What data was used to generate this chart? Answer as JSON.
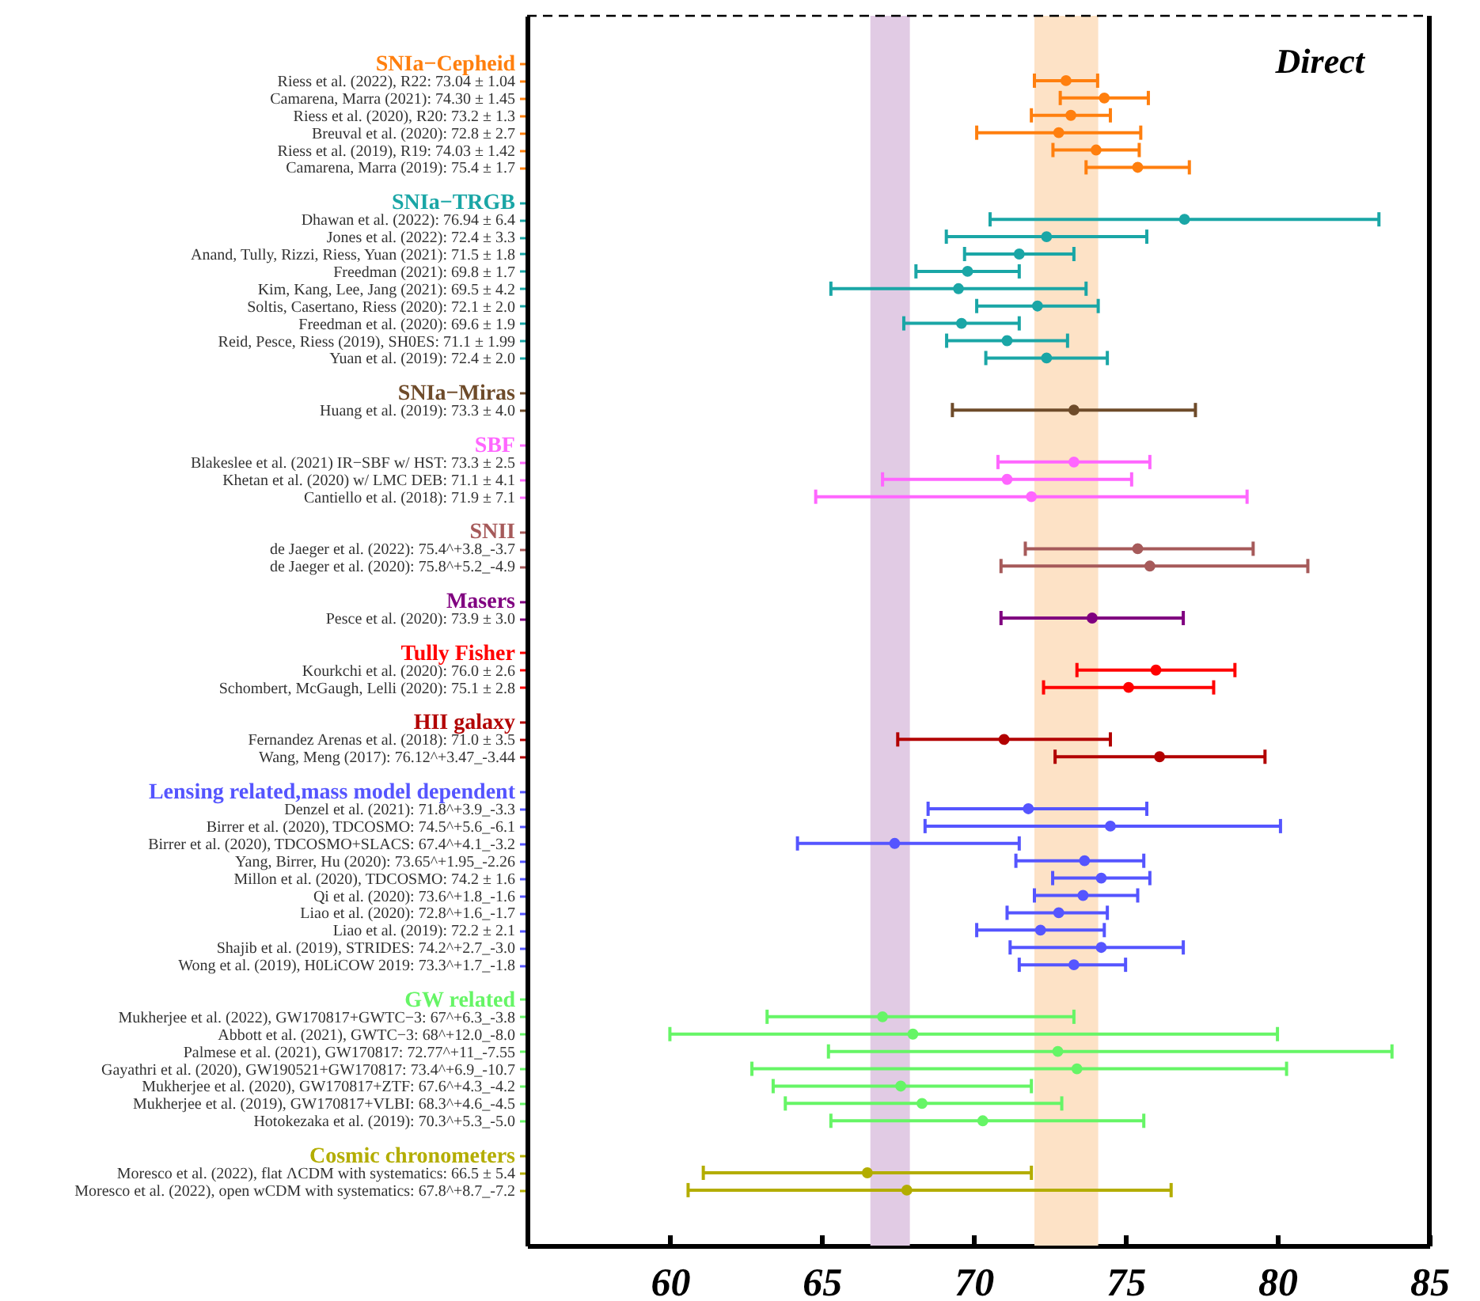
{
  "chart_data": {
    "type": "scatter",
    "orientation": "horizontal",
    "marker": "circle",
    "categories": [
      null,
      "Riess et al. (2022), R22: 73.04 ± 1.04",
      "Camarena, Marra (2021): 74.30 ± 1.45",
      "Riess et al. (2020), R20: 73.2 ± 1.3",
      "Breuval et al. (2020): 72.8 ± 2.7",
      "Riess et al. (2019), R19: 74.03 ± 1.42",
      "Camarena, Marra (2019): 75.4 ± 1.7",
      null,
      null,
      "Dhawan et al. (2022): 76.94 ± 6.4",
      "Jones et al. (2022): 72.4 ± 3.3",
      "Anand, Tully, Rizzi, Riess, Yuan (2021): 71.5 ± 1.8",
      "Freedman (2021): 69.8 ± 1.7",
      "Kim, Kang, Lee, Jang (2021): 69.5 ± 4.2",
      "Soltis, Casertano, Riess (2020): 72.1 ± 2.0",
      "Freedman et al. (2020): 69.6 ± 1.9",
      "Reid, Pesce, Riess (2019), SH0ES: 71.1 ± 1.99",
      "Yuan et al. (2019): 72.4 ± 2.0",
      null,
      null,
      "Huang et al. (2019): 73.3 ± 4.0",
      null,
      null,
      "Blakeslee et al. (2021) IR−SBF w/ HST: 73.3 ± 2.5",
      "Khetan et al. (2020) w/ LMC DEB: 71.1 ± 4.1",
      "Cantiello et al. (2018): 71.9 ± 7.1",
      null,
      null,
      "de Jaeger et al. (2022): 75.4^+3.8_-3.7",
      "de Jaeger et al. (2020): 75.8^+5.2_-4.9",
      null,
      null,
      "Pesce et al. (2020): 73.9 ± 3.0",
      null,
      null,
      "Kourkchi et al. (2020): 76.0 ± 2.6",
      "Schombert, McGaugh, Lelli (2020): 75.1 ± 2.8",
      null,
      null,
      "Fernandez Arenas et al. (2018): 71.0 ± 3.5",
      "Wang, Meng (2017): 76.12^+3.47_-3.44",
      null,
      null,
      "Denzel et al. (2021): 71.8^+3.9_-3.3",
      "Birrer et al. (2020), TDCOSMO: 74.5^+5.6_-6.1",
      "Birrer et al. (2020), TDCOSMO+SLACS: 67.4^+4.1_-3.2",
      "Yang, Birrer, Hu (2020): 73.65^+1.95_-2.26",
      "Millon et al. (2020), TDCOSMO: 74.2 ± 1.6",
      "Qi et al. (2020): 73.6^+1.8_-1.6",
      "Liao et al. (2020): 72.8^+1.6_-1.7",
      "Liao et al. (2019): 72.2 ± 2.1",
      "Shajib et al. (2019), STRIDES: 74.2^+2.7_-3.0",
      "Wong et al. (2019), H0LiCOW 2019: 73.3^+1.7_-1.8",
      null,
      null,
      "Mukherjee et al. (2022), GW170817+GWTC−3: 67^+6.3_-3.8",
      "Abbott et al. (2021), GWTC−3: 68^+12.0_-8.0",
      "Palmese et al. (2021), GW170817: 72.77^+11_-7.55",
      "Gayathri et al. (2020), GW190521+GW170817: 73.4^+6.9_-10.7",
      "Mukherjee et al. (2020), GW170817+ZTF: 67.6^+4.3_-4.2",
      "Mukherjee et al. (2019), GW170817+VLBI: 68.3^+4.6_-4.5",
      "Hotokezaka et al. (2019): 70.3^+5.3_-5.0",
      null,
      null,
      "Moresco et al. (2022), flat ΛCDM with systematics: 66.5 ± 5.4",
      "Moresco et al. (2022), open wCDM with systematics: 67.8^+8.7_-7.2"
    ],
    "series": [
      {
        "name": "SNIa−Cepheid",
        "color": "#ff7f0e",
        "values": [
          null,
          73.04,
          74.3,
          73.2,
          72.8,
          74.03,
          75.4,
          null,
          null,
          null,
          null,
          null,
          null,
          null,
          null,
          null,
          null,
          null,
          null,
          null,
          null,
          null,
          null,
          null,
          null,
          null,
          null,
          null,
          null,
          null,
          null,
          null,
          null,
          null,
          null,
          null,
          null,
          null,
          null,
          null,
          null,
          null,
          null,
          null,
          null,
          null,
          null,
          null,
          null,
          null,
          null,
          null,
          null,
          null,
          null,
          null,
          null,
          null,
          null,
          null,
          null,
          null,
          null,
          null,
          null,
          null
        ],
        "errors": [
          null,
          1.04,
          1.45,
          1.3,
          2.7,
          1.42,
          1.7,
          null,
          null,
          null,
          null,
          null,
          null,
          null,
          null,
          null,
          null,
          null,
          null,
          null,
          null,
          null,
          null,
          null,
          null,
          null,
          null,
          null,
          null,
          null,
          null,
          null,
          null,
          null,
          null,
          null,
          null,
          null,
          null,
          null,
          null,
          null,
          null,
          null,
          null,
          null,
          null,
          null,
          null,
          null,
          null,
          null,
          null,
          null,
          null,
          null,
          null,
          null,
          null,
          null,
          null,
          null,
          null,
          null,
          null,
          null
        ]
      },
      {
        "name": "SNIa−TRGB",
        "color": "#1aa6a6",
        "values": [
          null,
          null,
          null,
          null,
          null,
          null,
          null,
          null,
          null,
          76.94,
          72.4,
          71.5,
          69.8,
          69.5,
          72.1,
          69.6,
          71.1,
          72.4,
          null,
          null,
          null,
          null,
          null,
          null,
          null,
          null,
          null,
          null,
          null,
          null,
          null,
          null,
          null,
          null,
          null,
          null,
          null,
          null,
          null,
          null,
          null,
          null,
          null,
          null,
          null,
          null,
          null,
          null,
          null,
          null,
          null,
          null,
          null,
          null,
          null,
          null,
          null,
          null,
          null,
          null,
          null,
          null,
          null,
          null,
          null,
          null
        ],
        "errors": [
          null,
          null,
          null,
          null,
          null,
          null,
          null,
          null,
          null,
          6.4,
          3.3,
          1.8,
          1.7,
          4.2,
          2.0,
          1.9,
          1.99,
          2.0,
          null,
          null,
          null,
          null,
          null,
          null,
          null,
          null,
          null,
          null,
          null,
          null,
          null,
          null,
          null,
          null,
          null,
          null,
          null,
          null,
          null,
          null,
          null,
          null,
          null,
          null,
          null,
          null,
          null,
          null,
          null,
          null,
          null,
          null,
          null,
          null,
          null,
          null,
          null,
          null,
          null,
          null,
          null,
          null,
          null,
          null,
          null,
          null
        ]
      },
      {
        "name": "SNIa−Miras",
        "color": "#6e4b2a",
        "values": [
          null,
          null,
          null,
          null,
          null,
          null,
          null,
          null,
          null,
          null,
          null,
          null,
          null,
          null,
          null,
          null,
          null,
          null,
          null,
          null,
          73.3,
          null,
          null,
          null,
          null,
          null,
          null,
          null,
          null,
          null,
          null,
          null,
          null,
          null,
          null,
          null,
          null,
          null,
          null,
          null,
          null,
          null,
          null,
          null,
          null,
          null,
          null,
          null,
          null,
          null,
          null,
          null,
          null,
          null,
          null,
          null,
          null,
          null,
          null,
          null,
          null,
          null,
          null,
          null,
          null,
          null
        ],
        "errors": [
          null,
          null,
          null,
          null,
          null,
          null,
          null,
          null,
          null,
          null,
          null,
          null,
          null,
          null,
          null,
          null,
          null,
          null,
          null,
          null,
          4.0,
          null,
          null,
          null,
          null,
          null,
          null,
          null,
          null,
          null,
          null,
          null,
          null,
          null,
          null,
          null,
          null,
          null,
          null,
          null,
          null,
          null,
          null,
          null,
          null,
          null,
          null,
          null,
          null,
          null,
          null,
          null,
          null,
          null,
          null,
          null,
          null,
          null,
          null,
          null,
          null,
          null,
          null,
          null,
          null,
          null
        ]
      },
      {
        "name": "SBF",
        "color": "#ff66ff",
        "values": [
          null,
          null,
          null,
          null,
          null,
          null,
          null,
          null,
          null,
          null,
          null,
          null,
          null,
          null,
          null,
          null,
          null,
          null,
          null,
          null,
          null,
          null,
          null,
          73.3,
          71.1,
          71.9,
          null,
          null,
          null,
          null,
          null,
          null,
          null,
          null,
          null,
          null,
          null,
          null,
          null,
          null,
          null,
          null,
          null,
          null,
          null,
          null,
          null,
          null,
          null,
          null,
          null,
          null,
          null,
          null,
          null,
          null,
          null,
          null,
          null,
          null,
          null,
          null,
          null,
          null,
          null,
          null
        ],
        "errors": [
          null,
          null,
          null,
          null,
          null,
          null,
          null,
          null,
          null,
          null,
          null,
          null,
          null,
          null,
          null,
          null,
          null,
          null,
          null,
          null,
          null,
          null,
          null,
          2.5,
          4.1,
          7.1,
          null,
          null,
          null,
          null,
          null,
          null,
          null,
          null,
          null,
          null,
          null,
          null,
          null,
          null,
          null,
          null,
          null,
          null,
          null,
          null,
          null,
          null,
          null,
          null,
          null,
          null,
          null,
          null,
          null,
          null,
          null,
          null,
          null,
          null,
          null,
          null,
          null,
          null,
          null,
          null
        ]
      },
      {
        "name": "SNII",
        "color": "#a65a5a",
        "values": [
          null,
          null,
          null,
          null,
          null,
          null,
          null,
          null,
          null,
          null,
          null,
          null,
          null,
          null,
          null,
          null,
          null,
          null,
          null,
          null,
          null,
          null,
          null,
          null,
          null,
          null,
          null,
          null,
          75.4,
          75.8,
          null,
          null,
          null,
          null,
          null,
          null,
          null,
          null,
          null,
          null,
          null,
          null,
          null,
          null,
          null,
          null,
          null,
          null,
          null,
          null,
          null,
          null,
          null,
          null,
          null,
          null,
          null,
          null,
          null,
          null,
          null,
          null,
          null,
          null,
          null,
          null
        ],
        "errors": [
          null,
          null,
          null,
          null,
          null,
          null,
          null,
          null,
          null,
          null,
          null,
          null,
          null,
          null,
          null,
          null,
          null,
          null,
          null,
          null,
          null,
          null,
          null,
          null,
          null,
          null,
          null,
          null,
          [
            71.7,
            79.2
          ],
          [
            70.9,
            81.0
          ],
          null,
          null,
          null,
          null,
          null,
          null,
          null,
          null,
          null,
          null,
          null,
          null,
          null,
          null,
          null,
          null,
          null,
          null,
          null,
          null,
          null,
          null,
          null,
          null,
          null,
          null,
          null,
          null,
          null,
          null,
          null,
          null,
          null,
          null,
          null,
          null
        ]
      },
      {
        "name": "Masers",
        "color": "#800080",
        "values": [
          null,
          null,
          null,
          null,
          null,
          null,
          null,
          null,
          null,
          null,
          null,
          null,
          null,
          null,
          null,
          null,
          null,
          null,
          null,
          null,
          null,
          null,
          null,
          null,
          null,
          null,
          null,
          null,
          null,
          null,
          null,
          null,
          73.9,
          null,
          null,
          null,
          null,
          null,
          null,
          null,
          null,
          null,
          null,
          null,
          null,
          null,
          null,
          null,
          null,
          null,
          null,
          null,
          null,
          null,
          null,
          null,
          null,
          null,
          null,
          null,
          null,
          null,
          null,
          null,
          null,
          null
        ],
        "errors": [
          null,
          null,
          null,
          null,
          null,
          null,
          null,
          null,
          null,
          null,
          null,
          null,
          null,
          null,
          null,
          null,
          null,
          null,
          null,
          null,
          null,
          null,
          null,
          null,
          null,
          null,
          null,
          null,
          null,
          null,
          null,
          null,
          3.0,
          null,
          null,
          null,
          null,
          null,
          null,
          null,
          null,
          null,
          null,
          null,
          null,
          null,
          null,
          null,
          null,
          null,
          null,
          null,
          null,
          null,
          null,
          null,
          null,
          null,
          null,
          null,
          null,
          null,
          null,
          null,
          null,
          null
        ]
      },
      {
        "name": "Tully Fisher",
        "color": "#ff0000",
        "values": [
          null,
          null,
          null,
          null,
          null,
          null,
          null,
          null,
          null,
          null,
          null,
          null,
          null,
          null,
          null,
          null,
          null,
          null,
          null,
          null,
          null,
          null,
          null,
          null,
          null,
          null,
          null,
          null,
          null,
          null,
          null,
          null,
          null,
          null,
          null,
          76.0,
          75.1,
          null,
          null,
          null,
          null,
          null,
          null,
          null,
          null,
          null,
          null,
          null,
          null,
          null,
          null,
          null,
          null,
          null,
          null,
          null,
          null,
          null,
          null,
          null,
          null,
          null,
          null,
          null,
          null,
          null
        ],
        "errors": [
          null,
          null,
          null,
          null,
          null,
          null,
          null,
          null,
          null,
          null,
          null,
          null,
          null,
          null,
          null,
          null,
          null,
          null,
          null,
          null,
          null,
          null,
          null,
          null,
          null,
          null,
          null,
          null,
          null,
          null,
          null,
          null,
          null,
          null,
          null,
          2.6,
          2.8,
          null,
          null,
          null,
          null,
          null,
          null,
          null,
          null,
          null,
          null,
          null,
          null,
          null,
          null,
          null,
          null,
          null,
          null,
          null,
          null,
          null,
          null,
          null,
          null,
          null,
          null,
          null,
          null,
          null
        ]
      },
      {
        "name": "HII galaxy",
        "color": "#b20000",
        "values": [
          null,
          null,
          null,
          null,
          null,
          null,
          null,
          null,
          null,
          null,
          null,
          null,
          null,
          null,
          null,
          null,
          null,
          null,
          null,
          null,
          null,
          null,
          null,
          null,
          null,
          null,
          null,
          null,
          null,
          null,
          null,
          null,
          null,
          null,
          null,
          null,
          null,
          null,
          null,
          71.0,
          76.12,
          null,
          null,
          null,
          null,
          null,
          null,
          null,
          null,
          null,
          null,
          null,
          null,
          null,
          null,
          null,
          null,
          null,
          null,
          null,
          null,
          null,
          null,
          null,
          null,
          null
        ],
        "errors": [
          null,
          null,
          null,
          null,
          null,
          null,
          null,
          null,
          null,
          null,
          null,
          null,
          null,
          null,
          null,
          null,
          null,
          null,
          null,
          null,
          null,
          null,
          null,
          null,
          null,
          null,
          null,
          null,
          null,
          null,
          null,
          null,
          null,
          null,
          null,
          null,
          null,
          null,
          null,
          3.5,
          [
            72.68,
            79.59
          ],
          null,
          null,
          null,
          null,
          null,
          null,
          null,
          null,
          null,
          null,
          null,
          null,
          null,
          null,
          null,
          null,
          null,
          null,
          null,
          null,
          null,
          null,
          null,
          null,
          null
        ]
      },
      {
        "name": "Lensing related,mass model dependent",
        "color": "#5555ff",
        "values": [
          null,
          null,
          null,
          null,
          null,
          null,
          null,
          null,
          null,
          null,
          null,
          null,
          null,
          null,
          null,
          null,
          null,
          null,
          null,
          null,
          null,
          null,
          null,
          null,
          null,
          null,
          null,
          null,
          null,
          null,
          null,
          null,
          null,
          null,
          null,
          null,
          null,
          null,
          null,
          null,
          null,
          null,
          null,
          71.8,
          74.5,
          67.4,
          73.65,
          74.2,
          73.6,
          72.8,
          72.2,
          74.2,
          73.3,
          null,
          null,
          null,
          null,
          null,
          null,
          null,
          null,
          null,
          null,
          null,
          null,
          null
        ],
        "errors": [
          null,
          null,
          null,
          null,
          null,
          null,
          null,
          null,
          null,
          null,
          null,
          null,
          null,
          null,
          null,
          null,
          null,
          null,
          null,
          null,
          null,
          null,
          null,
          null,
          null,
          null,
          null,
          null,
          null,
          null,
          null,
          null,
          null,
          null,
          null,
          null,
          null,
          null,
          null,
          null,
          null,
          null,
          null,
          [
            68.5,
            75.7
          ],
          [
            68.4,
            80.1
          ],
          [
            64.2,
            71.5
          ],
          [
            71.39,
            75.6
          ],
          1.6,
          [
            72.0,
            75.4
          ],
          [
            71.1,
            74.4
          ],
          2.1,
          [
            71.2,
            76.9
          ],
          [
            71.5,
            75.0
          ],
          null,
          null,
          null,
          null,
          null,
          null,
          null,
          null,
          null,
          null,
          null,
          null,
          null
        ]
      },
      {
        "name": "GW related",
        "color": "#66f566",
        "values": [
          null,
          null,
          null,
          null,
          null,
          null,
          null,
          null,
          null,
          null,
          null,
          null,
          null,
          null,
          null,
          null,
          null,
          null,
          null,
          null,
          null,
          null,
          null,
          null,
          null,
          null,
          null,
          null,
          null,
          null,
          null,
          null,
          null,
          null,
          null,
          null,
          null,
          null,
          null,
          null,
          null,
          null,
          null,
          null,
          null,
          null,
          null,
          null,
          null,
          null,
          null,
          null,
          null,
          null,
          null,
          67,
          68,
          72.77,
          73.4,
          67.6,
          68.3,
          70.3,
          null,
          null,
          null,
          null
        ],
        "errors": [
          null,
          null,
          null,
          null,
          null,
          null,
          null,
          null,
          null,
          null,
          null,
          null,
          null,
          null,
          null,
          null,
          null,
          null,
          null,
          null,
          null,
          null,
          null,
          null,
          null,
          null,
          null,
          null,
          null,
          null,
          null,
          null,
          null,
          null,
          null,
          null,
          null,
          null,
          null,
          null,
          null,
          null,
          null,
          null,
          null,
          null,
          null,
          null,
          null,
          null,
          null,
          null,
          null,
          null,
          null,
          [
            63.2,
            73.3
          ],
          [
            60.0,
            80.0
          ],
          [
            65.22,
            83.77
          ],
          [
            62.7,
            80.3
          ],
          [
            63.4,
            71.9
          ],
          [
            63.8,
            72.9
          ],
          [
            65.3,
            75.6
          ],
          null,
          null,
          null,
          null
        ]
      },
      {
        "name": "Cosmic chronometers",
        "color": "#b3ad00",
        "values": [
          null,
          null,
          null,
          null,
          null,
          null,
          null,
          null,
          null,
          null,
          null,
          null,
          null,
          null,
          null,
          null,
          null,
          null,
          null,
          null,
          null,
          null,
          null,
          null,
          null,
          null,
          null,
          null,
          null,
          null,
          null,
          null,
          null,
          null,
          null,
          null,
          null,
          null,
          null,
          null,
          null,
          null,
          null,
          null,
          null,
          null,
          null,
          null,
          null,
          null,
          null,
          null,
          null,
          null,
          null,
          null,
          null,
          null,
          null,
          null,
          null,
          null,
          null,
          null,
          66.5,
          67.8
        ],
        "errors": [
          null,
          null,
          null,
          null,
          null,
          null,
          null,
          null,
          null,
          null,
          null,
          null,
          null,
          null,
          null,
          null,
          null,
          null,
          null,
          null,
          null,
          null,
          null,
          null,
          null,
          null,
          null,
          null,
          null,
          null,
          null,
          null,
          null,
          null,
          null,
          null,
          null,
          null,
          null,
          null,
          null,
          null,
          null,
          null,
          null,
          null,
          null,
          null,
          null,
          null,
          null,
          null,
          null,
          null,
          null,
          null,
          null,
          null,
          null,
          null,
          null,
          null,
          null,
          null,
          5.4,
          [
            60.6,
            76.5
          ]
        ]
      }
    ],
    "xlim": [
      55.3,
      85
    ],
    "xticks": [
      60,
      65,
      70,
      75,
      80,
      85
    ],
    "bands": [
      {
        "axis": "x",
        "from": 66.6,
        "to": 67.9,
        "color": "#e1cbe4"
      },
      {
        "axis": "x",
        "from": 72.0,
        "to": 74.1,
        "color": "#fde2c6"
      }
    ],
    "annotations": [
      "Direct"
    ]
  }
}
